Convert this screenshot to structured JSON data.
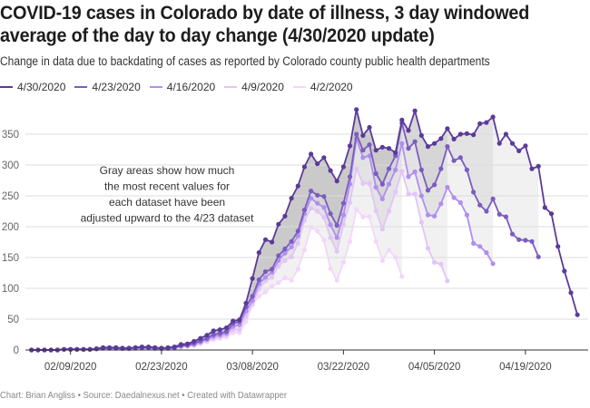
{
  "header": {
    "title": "COVID-19 cases in Colorado by date of illness, 3 day windowed average of the day to day change (4/30/2020 update)",
    "subtitle": "Change in data due to backdating of cases as reported by Colorado county public health departments"
  },
  "footer": {
    "text": "Chart: Brian Angliss • Source: Daedalnexus.net • Created with Datawrapper"
  },
  "chart_data": {
    "type": "line",
    "title": "COVID-19 cases in Colorado by date of illness, 3 day windowed average of the day to day change (4/30/2020 update)",
    "subtitle": "Change in data due to backdating of cases as reported by Colorado county public health departments",
    "xlabel": "",
    "ylabel": "",
    "x_start_date": "2020-02-03",
    "x_step_days": 1,
    "x_range": [
      "2020-02-03",
      "2020-04-27"
    ],
    "ylim": [
      0,
      350
    ],
    "y_ticks": [
      0,
      50,
      100,
      150,
      200,
      250,
      300,
      350
    ],
    "x_ticks": [
      {
        "date": "2020-02-09",
        "label": "02/09/2020"
      },
      {
        "date": "2020-02-23",
        "label": "02/23/2020"
      },
      {
        "date": "2020-03-08",
        "label": "03/08/2020"
      },
      {
        "date": "2020-03-22",
        "label": "03/22/2020"
      },
      {
        "date": "2020-04-05",
        "label": "04/05/2020"
      },
      {
        "date": "2020-04-19",
        "label": "04/19/2020"
      }
    ],
    "grid": true,
    "legend_position": "top-left",
    "annotation": {
      "lines": [
        "Gray areas show how much",
        "the most recent values for",
        "each dataset have been",
        "adjusted upward to the 4/23 dataset"
      ]
    },
    "series": [
      {
        "name": "4/30/2020",
        "color": "#5b3a9a",
        "values": [
          0,
          0,
          0,
          0,
          0,
          1,
          1,
          1,
          1,
          1,
          2,
          4,
          4,
          4,
          3,
          3,
          4,
          5,
          5,
          4,
          3,
          4,
          5,
          9,
          10,
          14,
          19,
          24,
          31,
          33,
          36,
          47,
          49,
          76,
          116,
          158,
          179,
          175,
          204,
          217,
          246,
          266,
          297,
          318,
          302,
          312,
          291,
          274,
          297,
          331,
          390,
          348,
          361,
          324,
          329,
          327,
          320,
          373,
          356,
          388,
          348,
          330,
          335,
          343,
          359,
          342,
          350,
          351,
          349,
          367,
          369,
          378,
          335,
          350,
          335,
          323,
          331,
          294,
          298,
          231,
          221,
          168,
          128,
          93,
          57
        ]
      },
      {
        "name": "4/23/2020",
        "color": "#7b5cc0",
        "values": [
          0,
          0,
          0,
          0,
          0,
          1,
          1,
          1,
          1,
          1,
          2,
          3,
          3,
          3,
          3,
          3,
          4,
          4,
          4,
          3,
          3,
          3,
          4,
          7,
          8,
          11,
          15,
          19,
          25,
          27,
          30,
          43,
          46,
          70,
          87,
          114,
          127,
          131,
          153,
          164,
          176,
          193,
          227,
          258,
          251,
          249,
          221,
          202,
          238,
          281,
          350,
          324,
          333,
          286,
          269,
          294,
          315,
          368,
          327,
          338,
          292,
          259,
          268,
          294,
          330,
          307,
          312,
          292,
          256,
          235,
          225,
          245,
          220,
          216,
          188,
          179,
          178,
          176,
          151
        ]
      },
      {
        "name": "4/16/2020",
        "color": "#b08ef0",
        "values": [
          0,
          0,
          0,
          0,
          0,
          1,
          1,
          1,
          1,
          1,
          2,
          3,
          3,
          3,
          2,
          2,
          3,
          3,
          3,
          3,
          2,
          3,
          3,
          6,
          7,
          9,
          13,
          17,
          22,
          24,
          27,
          38,
          41,
          63,
          80,
          107,
          118,
          126,
          145,
          157,
          167,
          185,
          221,
          246,
          238,
          231,
          203,
          182,
          219,
          269,
          343,
          312,
          315,
          264,
          245,
          269,
          292,
          335,
          281,
          289,
          250,
          219,
          217,
          237,
          264,
          247,
          239,
          219,
          173,
          168,
          158,
          140
        ]
      },
      {
        "name": "4/9/2020",
        "color": "#e3c4f8",
        "values": [
          0,
          0,
          0,
          0,
          0,
          1,
          1,
          1,
          1,
          1,
          2,
          3,
          3,
          3,
          2,
          2,
          3,
          3,
          3,
          2,
          2,
          3,
          3,
          5,
          6,
          8,
          11,
          15,
          19,
          21,
          24,
          33,
          33,
          55,
          75,
          99,
          112,
          118,
          136,
          145,
          151,
          173,
          210,
          230,
          225,
          215,
          182,
          160,
          204,
          239,
          294,
          270,
          270,
          226,
          196,
          225,
          256,
          290,
          253,
          253,
          207,
          165,
          142,
          139,
          112
        ]
      },
      {
        "name": "4/2/2020",
        "color": "#f2d7fb",
        "values": [
          0,
          0,
          0,
          0,
          0,
          1,
          1,
          1,
          1,
          1,
          1,
          2,
          2,
          2,
          2,
          2,
          2,
          3,
          3,
          2,
          2,
          2,
          3,
          5,
          6,
          7,
          10,
          13,
          17,
          19,
          21,
          28,
          28,
          46,
          73,
          87,
          94,
          103,
          109,
          117,
          113,
          131,
          162,
          199,
          193,
          178,
          132,
          113,
          142,
          176,
          228,
          216,
          216,
          176,
          145,
          162,
          150,
          119
        ]
      }
    ]
  }
}
